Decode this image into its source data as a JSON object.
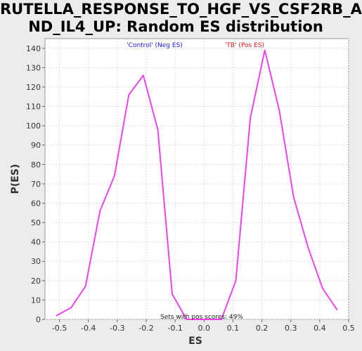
{
  "chart_data": {
    "type": "line",
    "title": "RUTELLA_RESPONSE_TO_HGF_VS_CSF2RB_A\nND_IL4_UP: Random ES distribution",
    "xlabel": "ES",
    "ylabel": "P(ES)",
    "xlim": [
      -0.55,
      0.5
    ],
    "ylim": [
      0,
      145
    ],
    "xticks": [
      -0.5,
      -0.4,
      -0.3,
      -0.2,
      -0.1,
      0.0,
      0.1,
      0.2,
      0.3,
      0.4,
      0.5
    ],
    "xtick_labels": [
      "-0.5",
      "-0.4",
      "-0.3",
      "-0.2",
      "-0.1",
      "0.0",
      "0.1",
      "0.2",
      "0.3",
      "0.4",
      "0.5"
    ],
    "yticks": [
      0,
      10,
      20,
      30,
      40,
      50,
      60,
      70,
      80,
      90,
      100,
      110,
      120,
      130,
      140
    ],
    "ytick_labels": [
      "0",
      "10",
      "20",
      "30",
      "40",
      "50",
      "60",
      "70",
      "80",
      "90",
      "100",
      "110",
      "120",
      "130",
      "140"
    ],
    "grid": true,
    "legend": {
      "neg_label": "'Control' (Neg ES)",
      "pos_label": "'TB' (Pos ES)",
      "neg_color": "#1a1aff",
      "pos_color": "#e0181e"
    },
    "annotation": "Sets with pos scores: 49%",
    "series": [
      {
        "color": "#ee44ee",
        "x": [
          -0.51,
          -0.46,
          -0.41,
          -0.36,
          -0.31,
          -0.26,
          -0.21,
          -0.16,
          -0.11,
          -0.06,
          0.0,
          0.06,
          0.11,
          0.16,
          0.21,
          0.26,
          0.31,
          0.36,
          0.41,
          0.46
        ],
        "y": [
          2,
          6,
          17,
          56,
          74,
          116,
          126,
          98,
          13,
          0,
          0,
          0,
          20,
          104,
          139,
          108,
          63,
          37,
          16,
          5
        ]
      }
    ]
  }
}
